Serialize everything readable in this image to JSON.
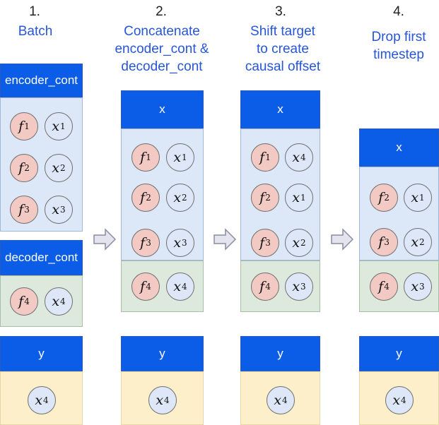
{
  "steps": [
    {
      "number": "1.",
      "title_lines": [
        "Batch"
      ]
    },
    {
      "number": "2.",
      "title_lines": [
        "Concatenate",
        "encoder_cont &",
        "decoder_cont"
      ]
    },
    {
      "number": "3.",
      "title_lines": [
        "Shift target",
        "to create",
        "causal offset"
      ]
    },
    {
      "number": "4.",
      "title_lines": [
        "Drop first",
        "timestep"
      ]
    }
  ],
  "column1": {
    "encoder_header": "encoder_cont",
    "encoder_rows": [
      [
        "f",
        "1",
        "x",
        "1"
      ],
      [
        "f",
        "2",
        "x",
        "2"
      ],
      [
        "f",
        "3",
        "x",
        "3"
      ]
    ],
    "decoder_header": "decoder_cont",
    "decoder_rows": [
      [
        "f",
        "4",
        "x",
        "4"
      ]
    ],
    "y_header": "y",
    "y_value": [
      "x",
      "4"
    ]
  },
  "column2": {
    "x_header": "x",
    "blue_rows": [
      [
        "f",
        "1",
        "x",
        "1"
      ],
      [
        "f",
        "2",
        "x",
        "2"
      ],
      [
        "f",
        "3",
        "x",
        "3"
      ]
    ],
    "green_rows": [
      [
        "f",
        "4",
        "x",
        "4"
      ]
    ],
    "y_header": "y",
    "y_value": [
      "x",
      "4"
    ]
  },
  "column3": {
    "x_header": "x",
    "blue_rows": [
      [
        "f",
        "1",
        "x",
        "4"
      ],
      [
        "f",
        "2",
        "x",
        "1"
      ],
      [
        "f",
        "3",
        "x",
        "2"
      ]
    ],
    "green_rows": [
      [
        "f",
        "4",
        "x",
        "3"
      ]
    ],
    "y_header": "y",
    "y_value": [
      "x",
      "4"
    ]
  },
  "column4": {
    "x_header": "x",
    "blue_rows": [
      [
        "f",
        "2",
        "x",
        "1"
      ],
      [
        "f",
        "3",
        "x",
        "2"
      ]
    ],
    "green_rows": [
      [
        "f",
        "4",
        "x",
        "3"
      ]
    ],
    "y_header": "y",
    "y_value": [
      "x",
      "4"
    ]
  },
  "colors": {
    "header_blue": "#0b5ce6",
    "feature_pink": "#f3c9c4",
    "target_blue": "#dde7f7",
    "box_blue": "#dce8f8",
    "box_green": "#dde9dc",
    "box_yellow": "#fdefc9",
    "title_blue": "#2756d6"
  }
}
